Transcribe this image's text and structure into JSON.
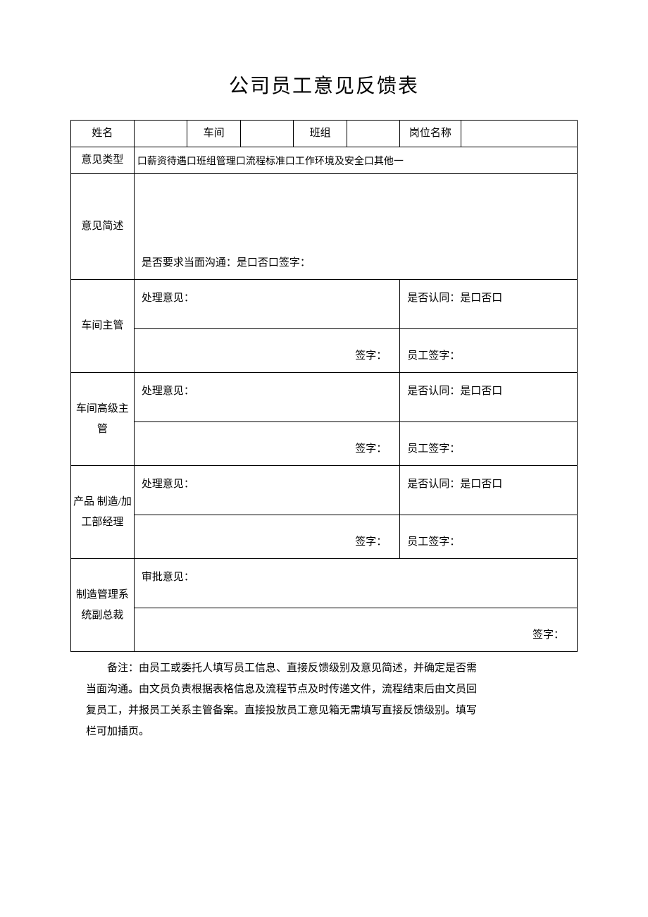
{
  "title": "公司员工意见反馈表",
  "header": {
    "name": "姓名",
    "workshop": "车间",
    "team": "班组",
    "position": "岗位名称"
  },
  "opinion_type": {
    "label": "意见类型",
    "content": "口薪资待遇口班组管理口流程标准口工作环境及安全口其他一"
  },
  "summary": {
    "label": "意见简述",
    "footer": "是否要求当面沟通：是口否口签字："
  },
  "sections": [
    {
      "role": "车间主管",
      "opinion_label": "处理意见：",
      "sign_label": "签字：",
      "approve_label": "是否认同：是口否口",
      "emp_sign_label": "员工签字："
    },
    {
      "role": "车间高级主管",
      "opinion_label": "处理意见：",
      "sign_label": "签字：",
      "approve_label": "是否认同：是口否口",
      "emp_sign_label": "员工签字："
    },
    {
      "role": "产品\n制造/加工部经理",
      "opinion_label": "处理意见：",
      "sign_label": "签字：",
      "approve_label": "是否认同：是口否口",
      "emp_sign_label": "员工签字："
    }
  ],
  "final": {
    "role": "制造管理系统副总裁",
    "opinion_label": "审批意见：",
    "sign_label": "签字："
  },
  "notes_lines": [
    "备注：由员工或委托人填写员工信息、直接反馈级别及意见简述，并确定是否需",
    "当面沟通。由文员负责根据表格信息及流程节点及时传递文件，流程结束后由文员回",
    "复员工，并报员工关系主管备案。直接投放员工意见箱无需填写直接反馈级别。填写",
    "栏可加插页。"
  ]
}
